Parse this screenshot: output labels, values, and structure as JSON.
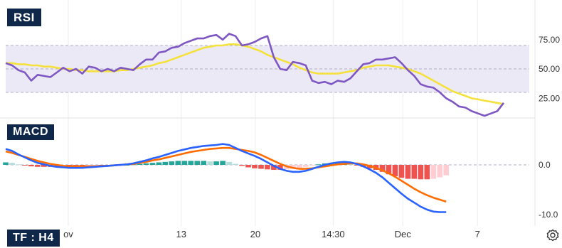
{
  "colors": {
    "rsi_line": "#7e57c2",
    "rsi_ma": "#f5e13b",
    "rsi_band": "#ece9f7",
    "macd_line": "#2962ff",
    "signal_line": "#ff6d00",
    "hist_pos_strong": "#26a69a",
    "hist_pos_weak": "#b2dfdb",
    "hist_neg_strong": "#ef5350",
    "hist_neg_weak": "#ffcdd2",
    "grid": "#ececec",
    "dashed": "#b0aec2",
    "axis_text": "#333333",
    "tag_bg": "#0f2748"
  },
  "labels": {
    "rsi_tag": "RSI",
    "macd_tag": "MACD",
    "timeframe_tag": "TF : H4"
  },
  "settings_icon": "gear-icon",
  "chart_data": [
    {
      "type": "line",
      "panel": "RSI",
      "y_ticks": [
        "75.00",
        "50.00",
        "25.00"
      ],
      "y_tick_values": [
        75,
        50,
        25
      ],
      "ylim": [
        0,
        100
      ],
      "bands": {
        "upper": 70,
        "middle": 50,
        "lower": 30
      },
      "series": [
        {
          "role": "rsi",
          "values": [
            55,
            53,
            49,
            47,
            40,
            45,
            44,
            43,
            47,
            51,
            48,
            50,
            46,
            52,
            51,
            48,
            50,
            48,
            51,
            50,
            49,
            54,
            58,
            58,
            64,
            65,
            68,
            69,
            72,
            74,
            76,
            76,
            78,
            79,
            75,
            80,
            78,
            70,
            71,
            73,
            76,
            78,
            60,
            50,
            49,
            56,
            55,
            53,
            40,
            38,
            39,
            37,
            40,
            39,
            42,
            48,
            54,
            55,
            58,
            58,
            59,
            60,
            55,
            49,
            44,
            37,
            35,
            34,
            30,
            25,
            22,
            18,
            17,
            14,
            12,
            10,
            12,
            14,
            21
          ]
        },
        {
          "role": "ma",
          "values": [
            55,
            55,
            54,
            54,
            53,
            53,
            52,
            52,
            51,
            50,
            50,
            49,
            49,
            48,
            48,
            48,
            48,
            48,
            49,
            49,
            50,
            51,
            52,
            53,
            55,
            56,
            58,
            60,
            62,
            64,
            66,
            68,
            69,
            70,
            70,
            71,
            71,
            70,
            69,
            67,
            65,
            62,
            60,
            58,
            56,
            54,
            51,
            49,
            47,
            46,
            46,
            46,
            46,
            47,
            48,
            49,
            51,
            52,
            53,
            53,
            53,
            52,
            51,
            50,
            48,
            46,
            43,
            40,
            37,
            34,
            31,
            29,
            27,
            25,
            24,
            23,
            22,
            21,
            20
          ]
        }
      ]
    },
    {
      "type": "line",
      "panel": "MACD",
      "y_ticks": [
        "0.0",
        "-10.0"
      ],
      "y_tick_values": [
        0,
        -10
      ],
      "ylim": [
        -10.7,
        5.7
      ],
      "series": [
        {
          "role": "macd",
          "values": [
            3.2,
            2.8,
            2.1,
            1.5,
            0.9,
            0.4,
            0.1,
            -0.2,
            -0.4,
            -0.5,
            -0.6,
            -0.6,
            -0.6,
            -0.5,
            -0.4,
            -0.3,
            -0.2,
            -0.1,
            0.0,
            0.1,
            0.3,
            0.6,
            0.9,
            1.3,
            1.6,
            2.0,
            2.4,
            2.8,
            3.1,
            3.4,
            3.6,
            3.8,
            3.9,
            4.0,
            4.2,
            4.0,
            3.4,
            2.8,
            2.3,
            1.8,
            1.2,
            0.5,
            -0.2,
            -0.8,
            -1.2,
            -1.4,
            -1.4,
            -1.2,
            -0.8,
            -0.4,
            0.0,
            0.3,
            0.5,
            0.6,
            0.5,
            0.2,
            -0.3,
            -0.9,
            -1.6,
            -2.5,
            -3.6,
            -4.7,
            -5.8,
            -6.8,
            -7.6,
            -8.4,
            -9.0,
            -9.4,
            -9.5,
            -9.5
          ],
          "x_start": 0,
          "x_end": 69
        },
        {
          "role": "signal",
          "values": [
            2.7,
            2.4,
            2.0,
            1.6,
            1.2,
            0.8,
            0.5,
            0.2,
            0.0,
            -0.2,
            -0.3,
            -0.3,
            -0.3,
            -0.3,
            -0.3,
            -0.2,
            -0.2,
            -0.1,
            0.0,
            0.1,
            0.2,
            0.4,
            0.6,
            0.9,
            1.1,
            1.4,
            1.7,
            2.0,
            2.3,
            2.6,
            2.8,
            3.0,
            3.2,
            3.3,
            3.4,
            3.4,
            3.2,
            3.0,
            2.8,
            2.5,
            2.0,
            1.4,
            0.8,
            0.2,
            -0.3,
            -0.6,
            -0.8,
            -0.8,
            -0.7,
            -0.5,
            -0.3,
            -0.1,
            0.1,
            0.2,
            0.3,
            0.3,
            0.1,
            -0.2,
            -0.6,
            -1.1,
            -1.7,
            -2.4,
            -3.2,
            -4.0,
            -4.8,
            -5.5,
            -6.1,
            -6.6,
            -7.0,
            -7.4
          ],
          "x_start": 0,
          "x_end": 69
        }
      ],
      "histogram": [
        0.5,
        0.4,
        0.1,
        -0.1,
        -0.3,
        -0.4,
        -0.4,
        -0.4,
        -0.4,
        -0.3,
        -0.3,
        -0.3,
        -0.3,
        -0.2,
        -0.1,
        -0.1,
        0.0,
        0.0,
        0.0,
        0.0,
        0.1,
        0.2,
        0.3,
        0.4,
        0.5,
        0.6,
        0.7,
        0.8,
        0.8,
        0.8,
        0.8,
        0.8,
        0.7,
        0.7,
        0.8,
        0.6,
        0.2,
        -0.2,
        -0.5,
        -0.7,
        -0.8,
        -0.9,
        -1.0,
        -1.0,
        -0.9,
        -0.8,
        -0.6,
        -0.4,
        -0.1,
        0.1,
        0.3,
        0.4,
        0.4,
        0.4,
        0.2,
        -0.1,
        -0.4,
        -0.7,
        -1.0,
        -1.4,
        -1.9,
        -2.3,
        -2.6,
        -2.8,
        -2.8,
        -2.9,
        -2.9,
        -2.8,
        -2.5,
        -2.1
      ]
    }
  ],
  "x_axis": {
    "tick_labels": [
      "ov",
      "13",
      "20",
      "14:30",
      "Dec",
      "7"
    ],
    "tick_index": [
      9.8,
      27.5,
      39.1,
      51.3,
      62.2,
      73.9
    ],
    "count": 79
  }
}
